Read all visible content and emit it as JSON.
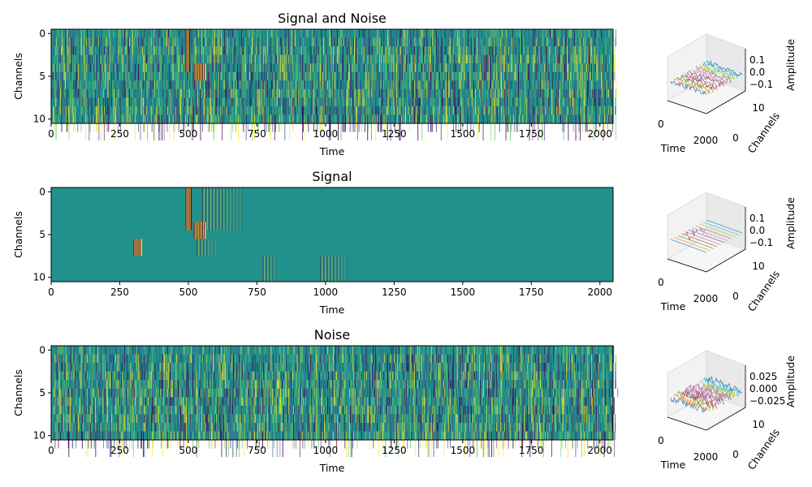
{
  "chart_data": [
    {
      "type": "heatmap",
      "title": "Signal and Noise",
      "xlabel": "Time",
      "ylabel": "Channels",
      "xlim": [
        0,
        2048
      ],
      "ylim": [
        10.5,
        -0.5
      ],
      "xticks": [
        "0",
        "250",
        "500",
        "750",
        "1000",
        "1250",
        "1500",
        "1750",
        "2000"
      ],
      "yticks": [
        "0",
        "5",
        "10"
      ],
      "colormap": "viridis",
      "channels": 11,
      "samples": 2048,
      "events": [
        {
          "channels": [
            0,
            4
          ],
          "time_start": 490,
          "time_end": 505
        },
        {
          "channels": [
            4,
            5
          ],
          "time_start": 520,
          "time_end": 560
        }
      ],
      "inset_3d": {
        "xlabel": "Time",
        "ylabel": "Channels",
        "zlabel": "Amplitude",
        "xticks": [
          "0",
          "2000"
        ],
        "yticks": [
          "0",
          "10"
        ],
        "zticks": [
          "0.1",
          "0.0",
          "−0.1"
        ]
      }
    },
    {
      "type": "heatmap",
      "title": "Signal",
      "xlabel": "Time",
      "ylabel": "Channels",
      "xlim": [
        0,
        2048
      ],
      "ylim": [
        10.5,
        -0.5
      ],
      "xticks": [
        "0",
        "250",
        "500",
        "750",
        "1000",
        "1250",
        "1500",
        "1750",
        "2000"
      ],
      "yticks": [
        "0",
        "5",
        "10"
      ],
      "colormap": "viridis",
      "channels": 11,
      "samples": 2048,
      "events": [
        {
          "channels": [
            0,
            4
          ],
          "time_start": 490,
          "time_end": 510
        },
        {
          "channels": [
            0,
            4
          ],
          "time_start": 550,
          "time_end": 700
        },
        {
          "channels": [
            4,
            5
          ],
          "time_start": 520,
          "time_end": 560
        },
        {
          "channels": [
            6,
            7
          ],
          "time_start": 300,
          "time_end": 330
        },
        {
          "channels": [
            6,
            7
          ],
          "time_start": 530,
          "time_end": 600
        },
        {
          "channels": [
            8,
            10
          ],
          "time_start": 770,
          "time_end": 820
        },
        {
          "channels": [
            8,
            10
          ],
          "time_start": 980,
          "time_end": 1080
        }
      ],
      "inset_3d": {
        "xlabel": "Time",
        "ylabel": "Channels",
        "zlabel": "Amplitude",
        "xticks": [
          "0",
          "2000"
        ],
        "yticks": [
          "0",
          "10"
        ],
        "zticks": [
          "0.1",
          "0.0",
          "−0.1"
        ]
      }
    },
    {
      "type": "heatmap",
      "title": "Noise",
      "xlabel": "Time",
      "ylabel": "Channels",
      "xlim": [
        0,
        2048
      ],
      "ylim": [
        10.5,
        -0.5
      ],
      "xticks": [
        "0",
        "250",
        "500",
        "750",
        "1000",
        "1250",
        "1500",
        "1750",
        "2000"
      ],
      "yticks": [
        "0",
        "5",
        "10"
      ],
      "colormap": "viridis",
      "channels": 11,
      "samples": 2048,
      "events": [],
      "inset_3d": {
        "xlabel": "Time",
        "ylabel": "Channels",
        "zlabel": "Amplitude",
        "xticks": [
          "0",
          "2000"
        ],
        "yticks": [
          "0",
          "10"
        ],
        "zticks": [
          "0.025",
          "0.000",
          "−0.025"
        ]
      }
    }
  ],
  "colors": {
    "background_teal": "#21918c",
    "viridis_dark": "#440154",
    "viridis_blue": "#3b528b",
    "viridis_green": "#5ec962",
    "viridis_yellow": "#fde725",
    "line_series": [
      "#1f77b4",
      "#ff7f0e",
      "#2ca02c",
      "#d62728",
      "#9467bd",
      "#8c564b",
      "#e377c2",
      "#7f7f7f",
      "#bcbd22",
      "#17becf",
      "#1f77b4"
    ]
  }
}
